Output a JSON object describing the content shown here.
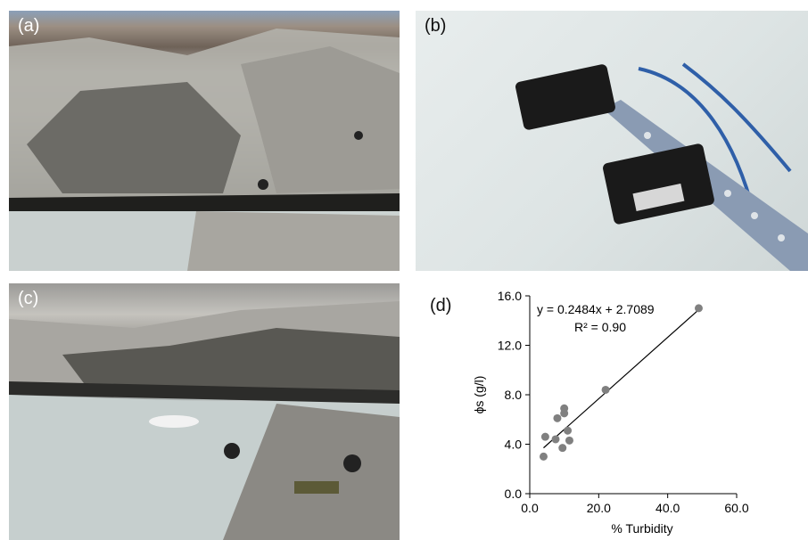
{
  "panels": {
    "a": {
      "label": "(a)"
    },
    "b": {
      "label": "(b)"
    },
    "c": {
      "label": "(c)"
    },
    "d": {
      "label": "(d)"
    }
  },
  "chart_data": {
    "type": "scatter",
    "xlabel": "% Turbidity",
    "ylabel": "ϕs (g/l)",
    "xlim": [
      0,
      60
    ],
    "ylim": [
      0,
      16
    ],
    "xticks": [
      "0.0",
      "20.0",
      "40.0",
      "60.0"
    ],
    "yticks": [
      "0.0",
      "4.0",
      "8.0",
      "12.0",
      "16.0"
    ],
    "x": [
      4.0,
      4.5,
      7.5,
      8.0,
      9.5,
      10.0,
      10.0,
      11.0,
      11.5,
      22.0,
      49.0
    ],
    "y": [
      3.0,
      4.6,
      4.4,
      6.1,
      3.7,
      6.9,
      6.5,
      5.1,
      4.3,
      8.4,
      15.0
    ],
    "trendline": {
      "slope": 0.2484,
      "intercept": 2.7089,
      "x_range": [
        4.0,
        49.0
      ]
    },
    "equation": "y = 0.2484x + 2.7089",
    "r_squared": "R² = 0.90",
    "colors": {
      "points": "#808080",
      "line": "#000000"
    }
  }
}
